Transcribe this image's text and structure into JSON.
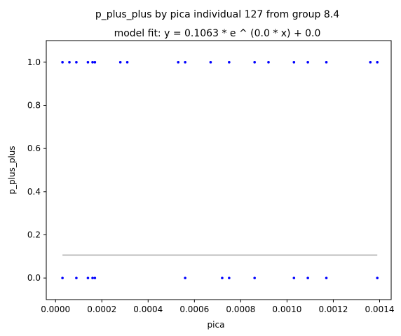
{
  "chart_data": {
    "type": "scatter",
    "title": "p_plus_plus by pica individual 127 from group 8.4",
    "subtitle": "model fit: y = 0.1063 * e ^ (0.0 * x) + 0.0",
    "xlabel": "pica",
    "ylabel": "p_plus_plus",
    "xlim": [
      -4e-05,
      0.00145
    ],
    "ylim": [
      -0.1,
      1.1
    ],
    "x_ticks": [
      0.0,
      0.0002,
      0.0004,
      0.0006,
      0.0008,
      0.001,
      0.0012,
      0.0014
    ],
    "x_tick_labels": [
      "0.0000",
      "0.0002",
      "0.0004",
      "0.0006",
      "0.0008",
      "0.0010",
      "0.0012",
      "0.0014"
    ],
    "y_ticks": [
      0.0,
      0.2,
      0.4,
      0.6,
      0.8,
      1.0
    ],
    "y_tick_labels": [
      "0.0",
      "0.2",
      "0.4",
      "0.6",
      "0.8",
      "1.0"
    ],
    "grid": false,
    "series": [
      {
        "kind": "scatter",
        "color": "#0000ff",
        "points": [
          {
            "x": 3e-05,
            "y": 1
          },
          {
            "x": 6e-05,
            "y": 1
          },
          {
            "x": 9e-05,
            "y": 1
          },
          {
            "x": 0.00014,
            "y": 1
          },
          {
            "x": 0.00016,
            "y": 1
          },
          {
            "x": 0.00017,
            "y": 1
          },
          {
            "x": 0.00028,
            "y": 1
          },
          {
            "x": 0.00031,
            "y": 1
          },
          {
            "x": 0.00053,
            "y": 1
          },
          {
            "x": 0.00056,
            "y": 1
          },
          {
            "x": 0.00067,
            "y": 1
          },
          {
            "x": 0.00075,
            "y": 1
          },
          {
            "x": 0.00086,
            "y": 1
          },
          {
            "x": 0.00092,
            "y": 1
          },
          {
            "x": 0.00103,
            "y": 1
          },
          {
            "x": 0.00109,
            "y": 1
          },
          {
            "x": 0.00117,
            "y": 1
          },
          {
            "x": 0.00136,
            "y": 1
          },
          {
            "x": 0.00139,
            "y": 1
          },
          {
            "x": 3e-05,
            "y": 0
          },
          {
            "x": 9e-05,
            "y": 0
          },
          {
            "x": 0.00014,
            "y": 0
          },
          {
            "x": 0.00016,
            "y": 0
          },
          {
            "x": 0.00017,
            "y": 0
          },
          {
            "x": 0.00056,
            "y": 0
          },
          {
            "x": 0.00072,
            "y": 0
          },
          {
            "x": 0.00075,
            "y": 0
          },
          {
            "x": 0.00086,
            "y": 0
          },
          {
            "x": 0.00103,
            "y": 0
          },
          {
            "x": 0.00109,
            "y": 0
          },
          {
            "x": 0.00117,
            "y": 0
          },
          {
            "x": 0.00139,
            "y": 0
          }
        ]
      },
      {
        "kind": "line",
        "color": "#aaaaaa",
        "points": [
          {
            "x": 3e-05,
            "y": 0.1063
          },
          {
            "x": 0.00139,
            "y": 0.1063
          }
        ]
      }
    ]
  }
}
